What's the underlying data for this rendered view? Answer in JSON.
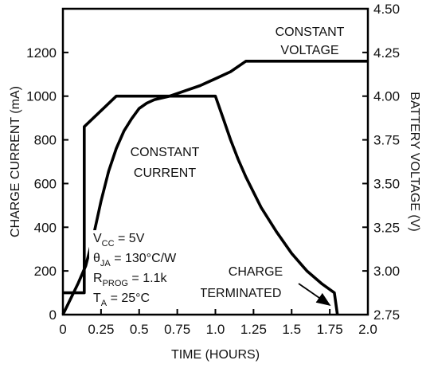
{
  "chart_data": {
    "type": "line",
    "xlabel": "TIME (HOURS)",
    "ylabel_left": "CHARGE CURRENT (mA)",
    "ylabel_right": "BATTERY VOLTAGE (V)",
    "xlim": [
      0,
      2.0
    ],
    "ylim_left": [
      0,
      1400
    ],
    "ylim_right": [
      2.75,
      4.5
    ],
    "x_ticks": [
      "0",
      "0.25",
      "0.5",
      "0.75",
      "1.0",
      "1.25",
      "1.5",
      "1.75",
      "2.0"
    ],
    "y_left_ticks": [
      "0",
      "200",
      "400",
      "600",
      "800",
      "1000",
      "1200"
    ],
    "y_right_ticks": [
      "2.75",
      "3.00",
      "3.25",
      "3.50",
      "3.75",
      "4.00",
      "4.25",
      "4.50"
    ],
    "grid": false,
    "series": [
      {
        "axis": "left",
        "color": "#000000",
        "points": [
          [
            0,
            100
          ],
          [
            0.14,
            100
          ],
          [
            0.14,
            860
          ],
          [
            0.35,
            1000
          ],
          [
            1.0,
            1000
          ],
          [
            1.05,
            900
          ],
          [
            1.1,
            800
          ],
          [
            1.15,
            710
          ],
          [
            1.2,
            630
          ],
          [
            1.3,
            490
          ],
          [
            1.4,
            380
          ],
          [
            1.5,
            280
          ],
          [
            1.6,
            200
          ],
          [
            1.7,
            140
          ],
          [
            1.78,
            100
          ],
          [
            1.8,
            0
          ]
        ]
      },
      {
        "axis": "right",
        "color": "#000000",
        "points": [
          [
            0,
            2.75
          ],
          [
            0.05,
            2.84
          ],
          [
            0.1,
            2.93
          ],
          [
            0.15,
            3.03
          ],
          [
            0.2,
            3.2
          ],
          [
            0.25,
            3.4
          ],
          [
            0.3,
            3.57
          ],
          [
            0.35,
            3.7
          ],
          [
            0.4,
            3.8
          ],
          [
            0.45,
            3.87
          ],
          [
            0.5,
            3.93
          ],
          [
            0.55,
            3.96
          ],
          [
            0.6,
            3.98
          ],
          [
            0.7,
            4.0
          ],
          [
            0.8,
            4.03
          ],
          [
            0.9,
            4.06
          ],
          [
            1.0,
            4.1
          ],
          [
            1.1,
            4.14
          ],
          [
            1.2,
            4.2
          ],
          [
            1.5,
            4.2
          ],
          [
            2.0,
            4.2
          ]
        ]
      }
    ],
    "annotations": {
      "constant_voltage": [
        "CONSTANT",
        "VOLTAGE"
      ],
      "constant_current": [
        "CONSTANT",
        "CURRENT"
      ],
      "charge_terminated": [
        "CHARGE",
        "TERMINATED"
      ]
    },
    "conditions": [
      {
        "main": "V",
        "sub": "CC",
        "rest": " = 5V"
      },
      {
        "main": "θ",
        "sub": "JA",
        "rest": " = 130°C/W"
      },
      {
        "main": "R",
        "sub": "PROG",
        "rest": " = 1.1k"
      },
      {
        "main": "T",
        "sub": "A",
        "rest": " = 25°C"
      }
    ]
  }
}
